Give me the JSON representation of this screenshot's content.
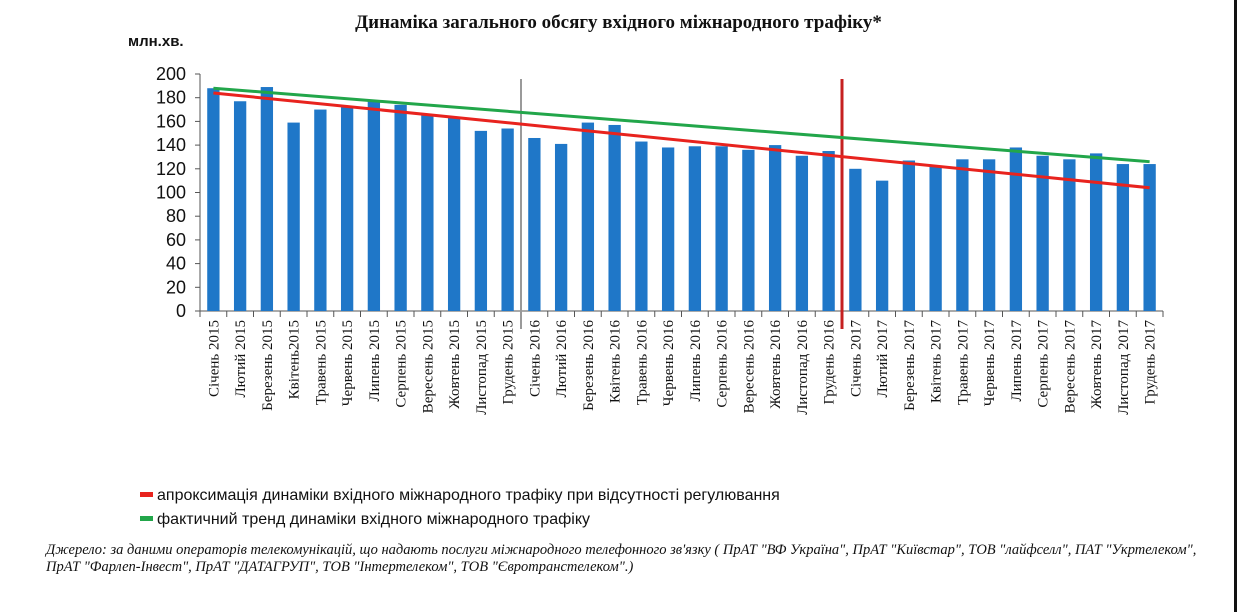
{
  "chart_data": {
    "type": "bar",
    "title": "Динаміка загального обсягу вхідного міжнародного трафіку*",
    "ylabel": "млн.хв.",
    "ylim": [
      0,
      200
    ],
    "yticks": [
      0,
      20,
      40,
      60,
      80,
      100,
      120,
      140,
      160,
      180,
      200
    ],
    "grid": false,
    "categories": [
      "Січень 2015",
      "Лютий 2015",
      "Березень 2015",
      "Квітень2015",
      "Травень 2015",
      "Червень 2015",
      "Липень 2015",
      "Серпень 2015",
      "Вересень 2015",
      "Жовтень 2015",
      "Листопад 2015",
      "Грудень 2015",
      "Січень 2016",
      "Лютий 2016",
      "Березень 2016",
      "Квітень 2016",
      "Травень 2016",
      "Червень 2016",
      "Липень 2016",
      "Серпень 2016",
      "Вересень 2016",
      "Жовтень 2016",
      "Листопад 2016",
      "Грудень 2016",
      "Січень 2017",
      "Лютий 2017",
      "Березень 2017",
      "Квітень 2017",
      "Травень 2017",
      "Червень 2017",
      "Липень 2017",
      "Серпень 2017",
      "Вересень 2017",
      "Жовтень 2017",
      "Листопад 2017",
      "Грудень 2017"
    ],
    "values": [
      188,
      177,
      189,
      159,
      170,
      172,
      177,
      174,
      165,
      163,
      152,
      154,
      146,
      141,
      159,
      157,
      143,
      138,
      139,
      139,
      136,
      140,
      131,
      135,
      120,
      110,
      127,
      122,
      128,
      128,
      138,
      131,
      128,
      133,
      124,
      124
    ],
    "bar_color": "#1f77c8",
    "lines": [
      {
        "name": "апроксимація динаміки вхідного міжнародного трафіку при відсутності регулювання",
        "color": "#e8231e",
        "start": 184,
        "end": 104
      },
      {
        "name": "фактичний тренд динаміки вхідного міжнародного трафіку",
        "color": "#22a64a",
        "start": 188,
        "end": 126
      }
    ],
    "markers": [
      {
        "after_category": "Грудень 2015",
        "color": "#9a9a9a"
      },
      {
        "after_category": "Грудень 2016",
        "color": "#c62020"
      }
    ],
    "legend_position": "bottom-left"
  },
  "source_note": "Джерело: за даними операторів телекомунікацій, що надають послуги міжнародного телефонного зв'язку ( ПрАТ \"ВФ Україна\", ПрАТ \"Київстар\", ТОВ \"лайфселл\", ПАТ \"Укртелеком\", ПрАТ \"Фарлеп-Інвест\", ПрАТ \"ДАТАГРУП\", ТОВ \"Інтертелеком\", ТОВ \"Євротранстелеком\".)"
}
